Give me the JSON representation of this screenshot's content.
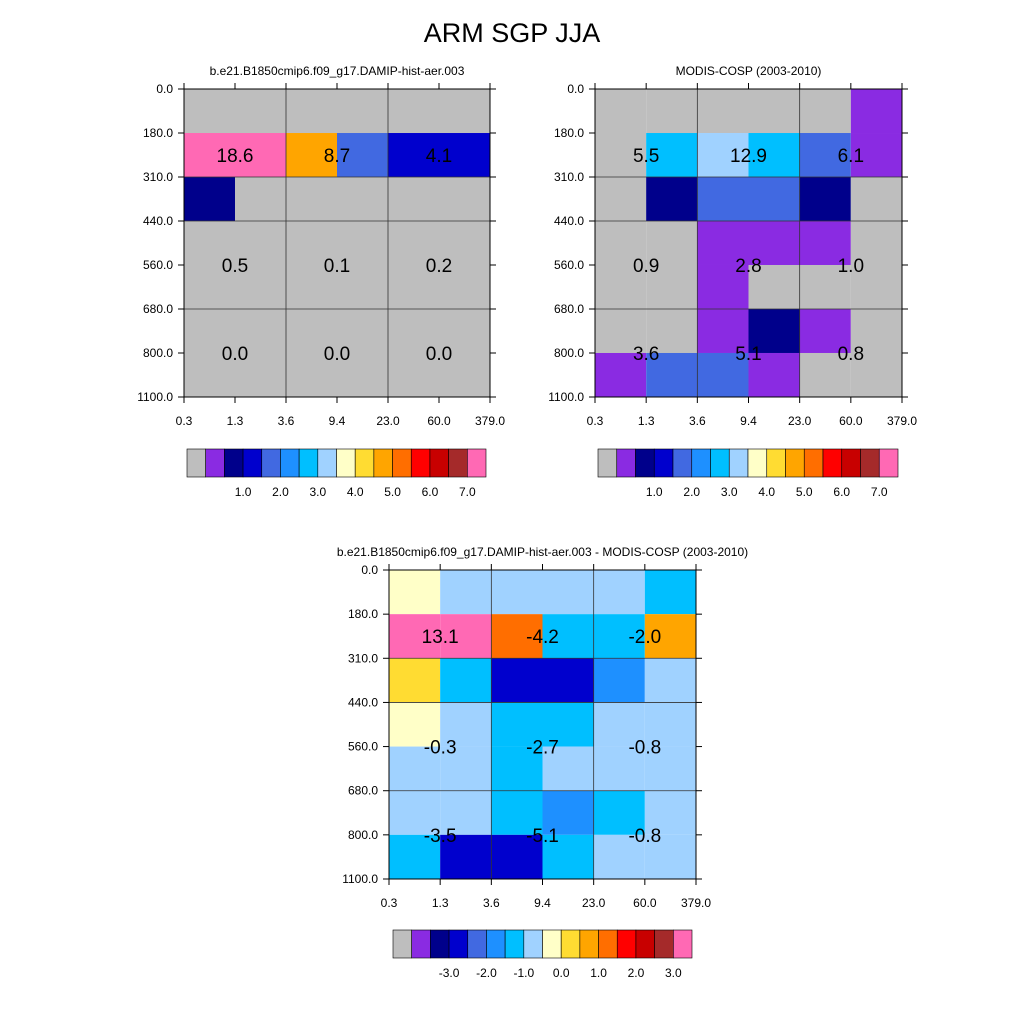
{
  "figure_title": "ARM SGP JJA",
  "chart_data": [
    {
      "type": "heatmap",
      "id": "model",
      "title": "b.e21.B1850cmip6.f09_g17.DAMIP-hist-aer.003",
      "x_ticks": [
        "0.3",
        "1.3",
        "3.6",
        "9.4",
        "23.0",
        "60.0",
        "379.0"
      ],
      "y_ticks": [
        "0.0",
        "180.0",
        "310.0",
        "440.0",
        "560.0",
        "680.0",
        "800.0",
        "1100.0"
      ],
      "bins_tau": [
        "0.3-1.3",
        "1.3-3.6",
        "3.6-9.4",
        "9.4-23.0",
        "23.0-60.0",
        "60.0-379.0"
      ],
      "bins_pressure": [
        "0-180",
        "180-310",
        "310-440",
        "440-560",
        "560-680",
        "680-800",
        "800-1100"
      ],
      "cell_colors": [
        [
          "#bebebe",
          "#bebebe",
          "#bebebe",
          "#bebebe",
          "#bebebe",
          "#bebebe"
        ],
        [
          "#ff69b4",
          "#ff69b4",
          "#ffa500",
          "#4169e1",
          "#0000cd",
          "#0000cd"
        ],
        [
          "#00008b",
          "#bebebe",
          "#bebebe",
          "#bebebe",
          "#bebebe",
          "#bebebe"
        ],
        [
          "#bebebe",
          "#bebebe",
          "#bebebe",
          "#bebebe",
          "#bebebe",
          "#bebebe"
        ],
        [
          "#bebebe",
          "#bebebe",
          "#bebebe",
          "#bebebe",
          "#bebebe",
          "#bebebe"
        ],
        [
          "#bebebe",
          "#bebebe",
          "#bebebe",
          "#bebebe",
          "#bebebe",
          "#bebebe"
        ],
        [
          "#bebebe",
          "#bebebe",
          "#bebebe",
          "#bebebe",
          "#bebebe",
          "#bebebe"
        ]
      ],
      "block_labels": [
        [
          "18.6",
          "8.7",
          "4.1"
        ],
        [
          "0.5",
          "0.1",
          "0.2"
        ],
        [
          "0.0",
          "0.0",
          "0.0"
        ]
      ],
      "colorbar": {
        "colors": [
          "#bebebe",
          "#8a2be2",
          "#00008b",
          "#0000cd",
          "#4169e1",
          "#1e90ff",
          "#00bfff",
          "#a0d2ff",
          "#ffffc8",
          "#ffdc32",
          "#ffa500",
          "#ff6e00",
          "#ff0000",
          "#c80000",
          "#a52a2a",
          "#ff69b4"
        ],
        "labels": [
          "1.0",
          "2.0",
          "3.0",
          "4.0",
          "5.0",
          "6.0",
          "7.0"
        ]
      }
    },
    {
      "type": "heatmap",
      "id": "obs",
      "title": "MODIS-COSP (2003-2010)",
      "x_ticks": [
        "0.3",
        "1.3",
        "3.6",
        "9.4",
        "23.0",
        "60.0",
        "379.0"
      ],
      "y_ticks": [
        "0.0",
        "180.0",
        "310.0",
        "440.0",
        "560.0",
        "680.0",
        "800.0",
        "1100.0"
      ],
      "bins_tau": [
        "0.3-1.3",
        "1.3-3.6",
        "3.6-9.4",
        "9.4-23.0",
        "23.0-60.0",
        "60.0-379.0"
      ],
      "bins_pressure": [
        "0-180",
        "180-310",
        "310-440",
        "440-560",
        "560-680",
        "680-800",
        "800-1100"
      ],
      "cell_colors": [
        [
          "#bebebe",
          "#bebebe",
          "#bebebe",
          "#bebebe",
          "#bebebe",
          "#8a2be2"
        ],
        [
          "#bebebe",
          "#00bfff",
          "#a0d2ff",
          "#00bfff",
          "#4169e1",
          "#8a2be2"
        ],
        [
          "#bebebe",
          "#00008b",
          "#4169e1",
          "#4169e1",
          "#00008b",
          "#bebebe"
        ],
        [
          "#bebebe",
          "#bebebe",
          "#8a2be2",
          "#8a2be2",
          "#8a2be2",
          "#bebebe"
        ],
        [
          "#bebebe",
          "#bebebe",
          "#8a2be2",
          "#bebebe",
          "#bebebe",
          "#bebebe"
        ],
        [
          "#bebebe",
          "#bebebe",
          "#8a2be2",
          "#00008b",
          "#8a2be2",
          "#bebebe"
        ],
        [
          "#8a2be2",
          "#4169e1",
          "#4169e1",
          "#8a2be2",
          "#bebebe",
          "#bebebe"
        ]
      ],
      "block_labels": [
        [
          "5.5",
          "12.9",
          "6.1"
        ],
        [
          "0.9",
          "2.8",
          "1.0"
        ],
        [
          "3.6",
          "5.1",
          "0.8"
        ]
      ],
      "colorbar": {
        "colors": [
          "#bebebe",
          "#8a2be2",
          "#00008b",
          "#0000cd",
          "#4169e1",
          "#1e90ff",
          "#00bfff",
          "#a0d2ff",
          "#ffffc8",
          "#ffdc32",
          "#ffa500",
          "#ff6e00",
          "#ff0000",
          "#c80000",
          "#a52a2a",
          "#ff69b4"
        ],
        "labels": [
          "1.0",
          "2.0",
          "3.0",
          "4.0",
          "5.0",
          "6.0",
          "7.0"
        ]
      }
    },
    {
      "type": "heatmap",
      "id": "diff",
      "title": "b.e21.B1850cmip6.f09_g17.DAMIP-hist-aer.003 - MODIS-COSP (2003-2010)",
      "x_ticks": [
        "0.3",
        "1.3",
        "3.6",
        "9.4",
        "23.0",
        "60.0",
        "379.0"
      ],
      "y_ticks": [
        "0.0",
        "180.0",
        "310.0",
        "440.0",
        "560.0",
        "680.0",
        "800.0",
        "1100.0"
      ],
      "bins_tau": [
        "0.3-1.3",
        "1.3-3.6",
        "3.6-9.4",
        "9.4-23.0",
        "23.0-60.0",
        "60.0-379.0"
      ],
      "bins_pressure": [
        "0-180",
        "180-310",
        "310-440",
        "440-560",
        "560-680",
        "680-800",
        "800-1100"
      ],
      "cell_colors": [
        [
          "#ffffc8",
          "#a0d2ff",
          "#a0d2ff",
          "#a0d2ff",
          "#a0d2ff",
          "#00bfff"
        ],
        [
          "#ff69b4",
          "#ff69b4",
          "#ff6e00",
          "#00bfff",
          "#00bfff",
          "#ffa500"
        ],
        [
          "#ffdc32",
          "#00bfff",
          "#0000cd",
          "#0000cd",
          "#1e90ff",
          "#a0d2ff"
        ],
        [
          "#ffffc8",
          "#a0d2ff",
          "#00bfff",
          "#00bfff",
          "#a0d2ff",
          "#a0d2ff"
        ],
        [
          "#a0d2ff",
          "#a0d2ff",
          "#00bfff",
          "#a0d2ff",
          "#a0d2ff",
          "#a0d2ff"
        ],
        [
          "#a0d2ff",
          "#a0d2ff",
          "#00bfff",
          "#1e90ff",
          "#00bfff",
          "#a0d2ff"
        ],
        [
          "#00bfff",
          "#0000cd",
          "#0000cd",
          "#00bfff",
          "#a0d2ff",
          "#a0d2ff"
        ]
      ],
      "block_labels": [
        [
          "13.1",
          "-4.2",
          "-2.0"
        ],
        [
          "-0.3",
          "-2.7",
          "-0.8"
        ],
        [
          "-3.5",
          "-5.1",
          "-0.8"
        ]
      ],
      "colorbar": {
        "colors": [
          "#bebebe",
          "#8a2be2",
          "#00008b",
          "#0000cd",
          "#4169e1",
          "#1e90ff",
          "#00bfff",
          "#a0d2ff",
          "#ffffc8",
          "#ffdc32",
          "#ffa500",
          "#ff6e00",
          "#ff0000",
          "#c80000",
          "#a52a2a",
          "#ff69b4"
        ],
        "labels": [
          "-3.0",
          "-2.0",
          "-1.0",
          "0.0",
          "1.0",
          "2.0",
          "3.0"
        ]
      }
    }
  ]
}
